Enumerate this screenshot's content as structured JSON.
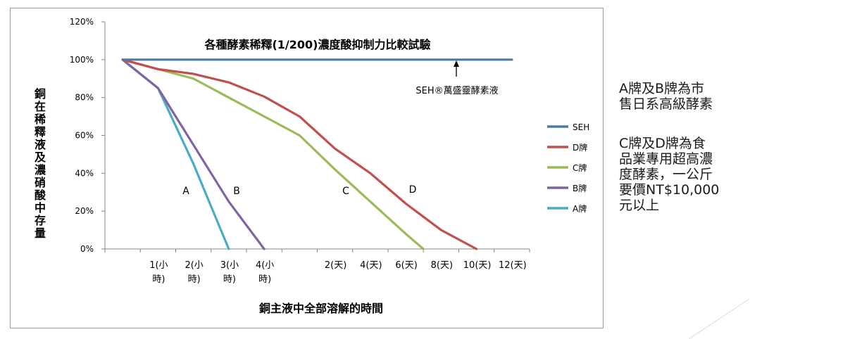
{
  "chart_data": {
    "type": "line",
    "title": "各種酵素稀釋(1/200)濃度酸抑制力比較試驗",
    "xlabel": "銅主液中全部溶解的時間",
    "ylabel": "銅在稀釋液及濃硝酸中存量",
    "categories": [
      "",
      "1(小時)",
      "2(小時)",
      "3(小時)",
      "4(小時)",
      "",
      "2(天)",
      "4(天)",
      "6(天)",
      "8(天)",
      "10(天)",
      "12(天)"
    ],
    "y_ticks": [
      "0%",
      "20%",
      "40%",
      "60%",
      "80%",
      "100%",
      "120%"
    ],
    "ylim": [
      0,
      120
    ],
    "grid": false,
    "legend_position": "right",
    "series": [
      {
        "name": "SEH",
        "color": "#4a7ba7",
        "values": [
          100,
          100,
          100,
          100,
          100,
          100,
          100,
          100,
          100,
          100,
          100,
          100
        ]
      },
      {
        "name": "D牌",
        "color": "#c0504d",
        "values": [
          100,
          95,
          92.5,
          88,
          80.5,
          70,
          53,
          40,
          24,
          10,
          0,
          null
        ]
      },
      {
        "name": "C牌",
        "color": "#9bbb59",
        "values": [
          100,
          95,
          90,
          80,
          70,
          60,
          42,
          25,
          8,
          -8,
          null,
          null
        ]
      },
      {
        "name": "B牌",
        "color": "#8064a2",
        "values": [
          100,
          85,
          55,
          25,
          0,
          null,
          null,
          null,
          null,
          null,
          null,
          null
        ]
      },
      {
        "name": "A牌",
        "color": "#4bacc6",
        "values": [
          100,
          85,
          45,
          0,
          null,
          null,
          null,
          null,
          null,
          null,
          null,
          null
        ]
      }
    ],
    "annotations": {
      "seh_label": "SEH®萬盛靈酵素液",
      "curve_letters": [
        "A",
        "B",
        "C",
        "D"
      ]
    }
  },
  "side_notes": {
    "note1": "A牌及B牌為市\n售日系高級酵素",
    "note2": "C牌及D牌為食\n品業專用超高濃\n度酵素，一公斤\n要價NT$10,000\n元以上"
  }
}
